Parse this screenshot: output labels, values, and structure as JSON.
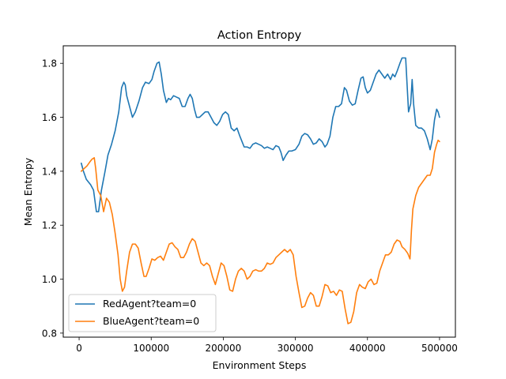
{
  "chart_data": {
    "type": "line",
    "title": "Action Entropy",
    "xlabel": "Environment Steps",
    "ylabel": "Mean Entropy",
    "xlim": [
      -22000,
      522000
    ],
    "ylim": [
      0.785,
      1.865
    ],
    "xticks": [
      0,
      100000,
      200000,
      300000,
      400000,
      500000
    ],
    "xtick_labels": [
      "0",
      "100000",
      "200000",
      "300000",
      "400000",
      "500000"
    ],
    "yticks": [
      0.8,
      1.0,
      1.2,
      1.4,
      1.6,
      1.8
    ],
    "ytick_labels": [
      "0.8",
      "1.0",
      "1.2",
      "1.4",
      "1.6",
      "1.8"
    ],
    "grid": false,
    "legend_position": "lower-left",
    "series": [
      {
        "name": "RedAgent?team=0",
        "color": "#1f77b4",
        "points": [
          [
            3000,
            1.43
          ],
          [
            6000,
            1.4
          ],
          [
            10000,
            1.37
          ],
          [
            16000,
            1.35
          ],
          [
            20000,
            1.33
          ],
          [
            24000,
            1.25
          ],
          [
            27000,
            1.25
          ],
          [
            31000,
            1.33
          ],
          [
            36000,
            1.4
          ],
          [
            40000,
            1.46
          ],
          [
            45000,
            1.5
          ],
          [
            50000,
            1.55
          ],
          [
            55000,
            1.62
          ],
          [
            59000,
            1.71
          ],
          [
            62000,
            1.73
          ],
          [
            64000,
            1.72
          ],
          [
            66000,
            1.68
          ],
          [
            70000,
            1.64
          ],
          [
            74000,
            1.6
          ],
          [
            78000,
            1.62
          ],
          [
            83000,
            1.66
          ],
          [
            88000,
            1.71
          ],
          [
            92000,
            1.73
          ],
          [
            97000,
            1.725
          ],
          [
            101000,
            1.74
          ],
          [
            104000,
            1.77
          ],
          [
            108000,
            1.8
          ],
          [
            111000,
            1.805
          ],
          [
            114000,
            1.76
          ],
          [
            117000,
            1.7
          ],
          [
            121000,
            1.655
          ],
          [
            124000,
            1.67
          ],
          [
            127000,
            1.665
          ],
          [
            131000,
            1.68
          ],
          [
            135000,
            1.675
          ],
          [
            139000,
            1.67
          ],
          [
            143000,
            1.64
          ],
          [
            147000,
            1.64
          ],
          [
            151000,
            1.67
          ],
          [
            154000,
            1.685
          ],
          [
            157000,
            1.67
          ],
          [
            160000,
            1.63
          ],
          [
            163000,
            1.6
          ],
          [
            167000,
            1.6
          ],
          [
            171000,
            1.61
          ],
          [
            175000,
            1.62
          ],
          [
            179000,
            1.62
          ],
          [
            183000,
            1.6
          ],
          [
            187000,
            1.58
          ],
          [
            191000,
            1.57
          ],
          [
            195000,
            1.585
          ],
          [
            199000,
            1.61
          ],
          [
            203000,
            1.62
          ],
          [
            207000,
            1.61
          ],
          [
            211000,
            1.56
          ],
          [
            215000,
            1.55
          ],
          [
            219000,
            1.56
          ],
          [
            223000,
            1.53
          ],
          [
            226000,
            1.51
          ],
          [
            229000,
            1.49
          ],
          [
            233000,
            1.49
          ],
          [
            237000,
            1.485
          ],
          [
            241000,
            1.5
          ],
          [
            245000,
            1.505
          ],
          [
            249000,
            1.5
          ],
          [
            253000,
            1.495
          ],
          [
            257000,
            1.485
          ],
          [
            261000,
            1.49
          ],
          [
            265000,
            1.485
          ],
          [
            269000,
            1.48
          ],
          [
            273000,
            1.495
          ],
          [
            277000,
            1.49
          ],
          [
            280000,
            1.47
          ],
          [
            283000,
            1.44
          ],
          [
            287000,
            1.46
          ],
          [
            291000,
            1.475
          ],
          [
            295000,
            1.475
          ],
          [
            300000,
            1.48
          ],
          [
            305000,
            1.5
          ],
          [
            309000,
            1.53
          ],
          [
            313000,
            1.54
          ],
          [
            317000,
            1.535
          ],
          [
            321000,
            1.52
          ],
          [
            325000,
            1.5
          ],
          [
            329000,
            1.505
          ],
          [
            333000,
            1.52
          ],
          [
            337000,
            1.51
          ],
          [
            341000,
            1.49
          ],
          [
            344000,
            1.5
          ],
          [
            348000,
            1.53
          ],
          [
            352000,
            1.6
          ],
          [
            356000,
            1.64
          ],
          [
            360000,
            1.64
          ],
          [
            364000,
            1.65
          ],
          [
            368000,
            1.71
          ],
          [
            371000,
            1.7
          ],
          [
            375000,
            1.66
          ],
          [
            379000,
            1.645
          ],
          [
            383000,
            1.65
          ],
          [
            387000,
            1.7
          ],
          [
            391000,
            1.745
          ],
          [
            394000,
            1.75
          ],
          [
            397000,
            1.71
          ],
          [
            400000,
            1.69
          ],
          [
            404000,
            1.7
          ],
          [
            408000,
            1.73
          ],
          [
            412000,
            1.76
          ],
          [
            416000,
            1.775
          ],
          [
            420000,
            1.76
          ],
          [
            424000,
            1.745
          ],
          [
            428000,
            1.76
          ],
          [
            432000,
            1.74
          ],
          [
            435000,
            1.76
          ],
          [
            438000,
            1.75
          ],
          [
            441000,
            1.77
          ],
          [
            445000,
            1.8
          ],
          [
            448000,
            1.82
          ],
          [
            453000,
            1.82
          ],
          [
            455000,
            1.72
          ],
          [
            457000,
            1.62
          ],
          [
            460000,
            1.65
          ],
          [
            462000,
            1.74
          ],
          [
            464000,
            1.65
          ],
          [
            467000,
            1.57
          ],
          [
            471000,
            1.56
          ],
          [
            475000,
            1.56
          ],
          [
            479000,
            1.55
          ],
          [
            483000,
            1.52
          ],
          [
            487000,
            1.48
          ],
          [
            490000,
            1.52
          ],
          [
            493000,
            1.59
          ],
          [
            496000,
            1.63
          ],
          [
            498000,
            1.62
          ],
          [
            500000,
            1.6
          ]
        ]
      },
      {
        "name": "BlueAgent?team=0",
        "color": "#ff7f0e",
        "points": [
          [
            3000,
            1.4
          ],
          [
            7000,
            1.41
          ],
          [
            11000,
            1.42
          ],
          [
            15000,
            1.435
          ],
          [
            18000,
            1.445
          ],
          [
            21000,
            1.45
          ],
          [
            23000,
            1.41
          ],
          [
            26000,
            1.33
          ],
          [
            30000,
            1.31
          ],
          [
            34000,
            1.25
          ],
          [
            38000,
            1.3
          ],
          [
            42000,
            1.285
          ],
          [
            46000,
            1.24
          ],
          [
            50000,
            1.17
          ],
          [
            54000,
            1.09
          ],
          [
            57000,
            1.0
          ],
          [
            60000,
            0.955
          ],
          [
            63000,
            0.97
          ],
          [
            66000,
            1.03
          ],
          [
            70000,
            1.1
          ],
          [
            74000,
            1.13
          ],
          [
            78000,
            1.13
          ],
          [
            82000,
            1.115
          ],
          [
            86000,
            1.06
          ],
          [
            90000,
            1.01
          ],
          [
            93000,
            1.01
          ],
          [
            97000,
            1.04
          ],
          [
            101000,
            1.075
          ],
          [
            105000,
            1.07
          ],
          [
            109000,
            1.08
          ],
          [
            113000,
            1.085
          ],
          [
            117000,
            1.07
          ],
          [
            121000,
            1.1
          ],
          [
            125000,
            1.13
          ],
          [
            129000,
            1.135
          ],
          [
            133000,
            1.12
          ],
          [
            137000,
            1.11
          ],
          [
            141000,
            1.08
          ],
          [
            145000,
            1.08
          ],
          [
            149000,
            1.1
          ],
          [
            153000,
            1.13
          ],
          [
            157000,
            1.15
          ],
          [
            161000,
            1.14
          ],
          [
            165000,
            1.1
          ],
          [
            169000,
            1.06
          ],
          [
            173000,
            1.05
          ],
          [
            177000,
            1.06
          ],
          [
            181000,
            1.05
          ],
          [
            185000,
            1.01
          ],
          [
            189000,
            0.98
          ],
          [
            193000,
            1.02
          ],
          [
            197000,
            1.06
          ],
          [
            201000,
            1.05
          ],
          [
            205000,
            1.01
          ],
          [
            209000,
            0.96
          ],
          [
            213000,
            0.955
          ],
          [
            217000,
            1.0
          ],
          [
            221000,
            1.03
          ],
          [
            225000,
            1.04
          ],
          [
            229000,
            1.03
          ],
          [
            233000,
            1.0
          ],
          [
            237000,
            1.01
          ],
          [
            241000,
            1.03
          ],
          [
            245000,
            1.035
          ],
          [
            249000,
            1.03
          ],
          [
            253000,
            1.03
          ],
          [
            257000,
            1.04
          ],
          [
            261000,
            1.06
          ],
          [
            265000,
            1.055
          ],
          [
            269000,
            1.06
          ],
          [
            273000,
            1.08
          ],
          [
            277000,
            1.09
          ],
          [
            281000,
            1.1
          ],
          [
            285000,
            1.11
          ],
          [
            289000,
            1.1
          ],
          [
            293000,
            1.11
          ],
          [
            297000,
            1.09
          ],
          [
            301000,
            1.01
          ],
          [
            305000,
            0.95
          ],
          [
            309000,
            0.895
          ],
          [
            313000,
            0.9
          ],
          [
            317000,
            0.93
          ],
          [
            321000,
            0.95
          ],
          [
            325000,
            0.94
          ],
          [
            329000,
            0.9
          ],
          [
            333000,
            0.9
          ],
          [
            337000,
            0.935
          ],
          [
            341000,
            0.98
          ],
          [
            345000,
            0.975
          ],
          [
            349000,
            0.95
          ],
          [
            353000,
            0.955
          ],
          [
            357000,
            0.94
          ],
          [
            361000,
            0.96
          ],
          [
            365000,
            0.955
          ],
          [
            369000,
            0.89
          ],
          [
            373000,
            0.835
          ],
          [
            377000,
            0.84
          ],
          [
            381000,
            0.88
          ],
          [
            385000,
            0.95
          ],
          [
            389000,
            0.98
          ],
          [
            393000,
            0.97
          ],
          [
            397000,
            0.965
          ],
          [
            401000,
            0.99
          ],
          [
            405000,
            1.0
          ],
          [
            409000,
            0.98
          ],
          [
            413000,
            0.985
          ],
          [
            417000,
            1.03
          ],
          [
            421000,
            1.06
          ],
          [
            425000,
            1.09
          ],
          [
            429000,
            1.09
          ],
          [
            433000,
            1.1
          ],
          [
            437000,
            1.13
          ],
          [
            441000,
            1.145
          ],
          [
            445000,
            1.14
          ],
          [
            448000,
            1.12
          ],
          [
            452000,
            1.11
          ],
          [
            456000,
            1.095
          ],
          [
            459000,
            1.075
          ],
          [
            461000,
            1.18
          ],
          [
            463000,
            1.26
          ],
          [
            467000,
            1.31
          ],
          [
            471000,
            1.34
          ],
          [
            475000,
            1.355
          ],
          [
            479000,
            1.37
          ],
          [
            483000,
            1.385
          ],
          [
            487000,
            1.385
          ],
          [
            490000,
            1.41
          ],
          [
            493000,
            1.47
          ],
          [
            496000,
            1.5
          ],
          [
            498000,
            1.515
          ],
          [
            500000,
            1.51
          ]
        ]
      }
    ]
  }
}
